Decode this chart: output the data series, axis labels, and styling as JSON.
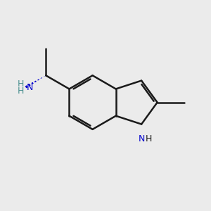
{
  "background_color": "#ebebeb",
  "bond_color": "#1a1a1a",
  "nitrogen_color": "#0000cc",
  "nh2_color": "#4a9090",
  "line_width": 1.8,
  "stereo_dash_color": "#0000cc",
  "figsize": [
    3.0,
    3.0
  ],
  "dpi": 100,
  "xlim": [
    0,
    10
  ],
  "ylim": [
    0,
    10
  ]
}
